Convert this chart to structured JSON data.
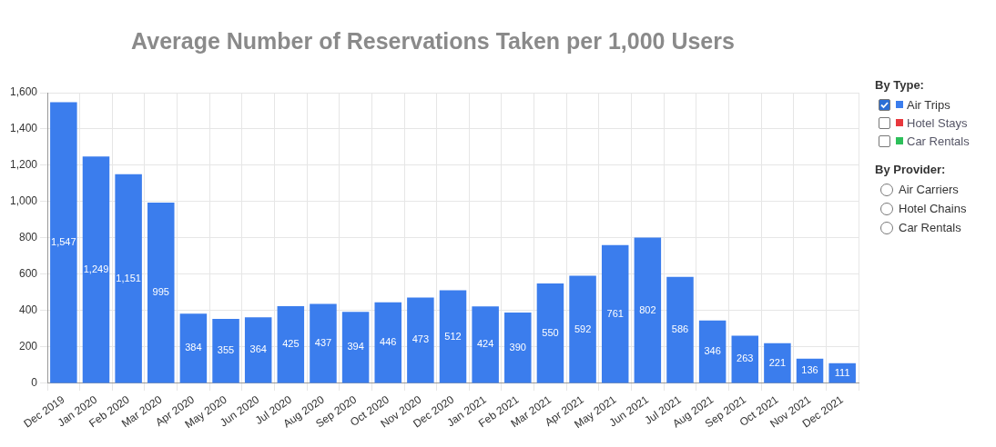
{
  "chart_data": {
    "type": "bar",
    "title": "Average Number of Reservations Taken per 1,000 Users",
    "categories": [
      "Dec 2019",
      "Jan 2020",
      "Feb 2020",
      "Mar 2020",
      "Apr 2020",
      "May 2020",
      "Jun 2020",
      "Jul 2020",
      "Aug 2020",
      "Sep 2020",
      "Oct 2020",
      "Nov 2020",
      "Dec 2020",
      "Jan 2021",
      "Feb 2021",
      "Mar 2021",
      "Apr 2021",
      "May 2021",
      "Jun 2021",
      "Jul 2021",
      "Aug 2021",
      "Sep 2021",
      "Oct 2021",
      "Nov 2021",
      "Dec 2021"
    ],
    "series": [
      {
        "name": "Air Trips",
        "color": "#3b7ded",
        "values": [
          1547,
          1249,
          1151,
          995,
          384,
          355,
          364,
          425,
          437,
          394,
          446,
          473,
          512,
          424,
          390,
          550,
          592,
          761,
          802,
          586,
          346,
          263,
          221,
          136,
          111
        ],
        "value_labels": [
          "1,547",
          "1,249",
          "1,151",
          "995",
          "384",
          "355",
          "364",
          "425",
          "437",
          "394",
          "446",
          "473",
          "512",
          "424",
          "390",
          "550",
          "592",
          "761",
          "802",
          "586",
          "346",
          "263",
          "221",
          "136",
          "111"
        ]
      },
      {
        "name": "Hotel Stays",
        "color": "#e8383d",
        "values": [
          null,
          null,
          null,
          null,
          null,
          null,
          null,
          null,
          null,
          null,
          null,
          null,
          null,
          null,
          null,
          null,
          null,
          null,
          null,
          null,
          null,
          null,
          null,
          null,
          null
        ]
      },
      {
        "name": "Car Rentals",
        "color": "#2dbf5a",
        "values": [
          null,
          null,
          null,
          null,
          null,
          null,
          null,
          null,
          null,
          null,
          null,
          null,
          null,
          null,
          null,
          null,
          null,
          null,
          null,
          null,
          null,
          null,
          null,
          null,
          null
        ]
      }
    ],
    "legend_title": "By Type:",
    "legend": "right",
    "annotations": [
      "By Provider:",
      "Air Carriers",
      "Hotel Chains",
      "Car Rentals"
    ],
    "ylim": [
      0,
      1600
    ],
    "yticks": [
      0,
      200,
      400,
      600,
      800,
      {
        "value": 1000,
        "label": "1,000"
      },
      {
        "value": 1200,
        "label": "1,200"
      },
      {
        "value": 1400,
        "label": "1,400"
      },
      {
        "value": 1600,
        "label": "1,600"
      }
    ],
    "grid": true
  }
}
